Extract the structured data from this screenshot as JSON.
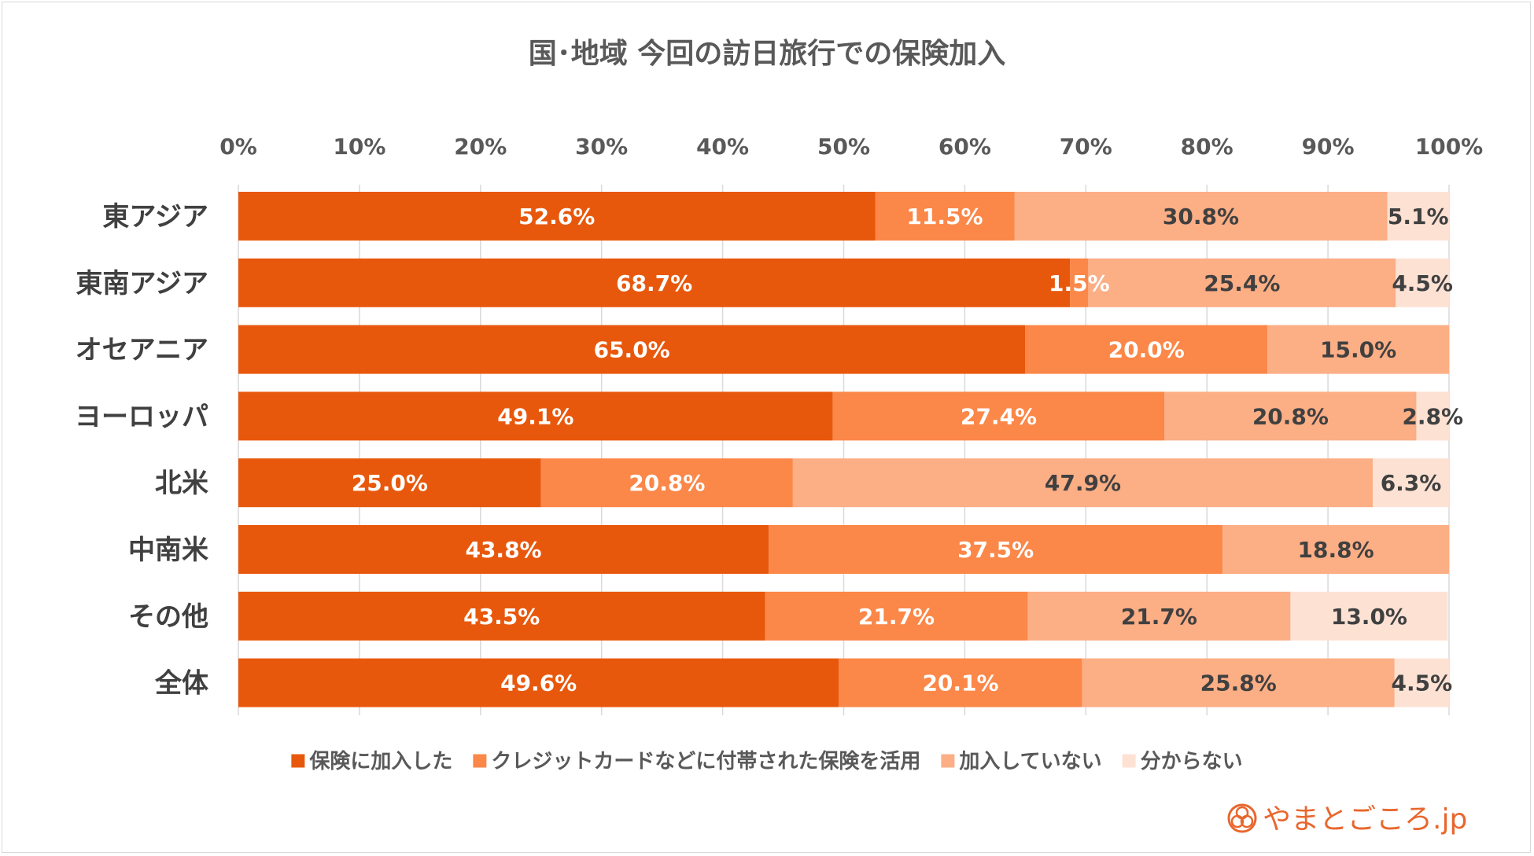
{
  "chart_data": {
    "type": "bar",
    "orientation": "horizontal",
    "stacked": "percent",
    "title": "国･地域 今回の訪日旅行での保険加入",
    "categories": [
      "東アジア",
      "東南アジア",
      "オセアニア",
      "ヨーロッパ",
      "北米",
      "中南米",
      "その他",
      "全体"
    ],
    "series": [
      {
        "name": "保険に加入した",
        "color": "#e8580c",
        "label_color": "#ffffff",
        "values": [
          52.6,
          68.7,
          65.0,
          49.1,
          25.0,
          43.8,
          43.5,
          49.6
        ],
        "labels": [
          "52.6%",
          "68.7%",
          "65.0%",
          "49.1%",
          "25.0%",
          "43.8%",
          "43.5%",
          "49.6%"
        ]
      },
      {
        "name": "クレジットカードなどに付帯された保険を活用",
        "color": "#fb8748",
        "label_color": "#ffffff",
        "values": [
          11.5,
          1.5,
          20.0,
          27.4,
          20.8,
          37.5,
          21.7,
          20.1
        ],
        "labels": [
          "11.5%",
          "1.5%",
          "20.0%",
          "27.4%",
          "20.8%",
          "37.5%",
          "21.7%",
          "20.1%"
        ]
      },
      {
        "name": "加入していない",
        "color": "#fcae85",
        "label_color": "#404040",
        "values": [
          30.8,
          25.4,
          15.0,
          20.8,
          47.9,
          18.8,
          21.7,
          25.8
        ],
        "labels": [
          "30.8%",
          "25.4%",
          "15.0%",
          "20.8%",
          "47.9%",
          "18.8%",
          "21.7%",
          "25.8%"
        ]
      },
      {
        "name": "分からない",
        "color": "#fde2d4",
        "label_color": "#404040",
        "values": [
          5.1,
          4.5,
          0,
          2.8,
          6.3,
          0,
          13.0,
          4.5
        ],
        "labels": [
          "5.1%",
          "4.5%",
          "",
          "2.8%",
          "6.3%",
          "",
          "13.0%",
          "4.5%"
        ]
      }
    ],
    "x_ticks": [
      "0%",
      "10%",
      "20%",
      "30%",
      "40%",
      "50%",
      "60%",
      "70%",
      "80%",
      "90%",
      "100%"
    ],
    "xlim": [
      0,
      100
    ],
    "grid": true,
    "legend_position": "bottom"
  },
  "logo": {
    "text": "やまとごころ.jp",
    "icon": "flower-crest-icon",
    "color": "#e8672e"
  }
}
